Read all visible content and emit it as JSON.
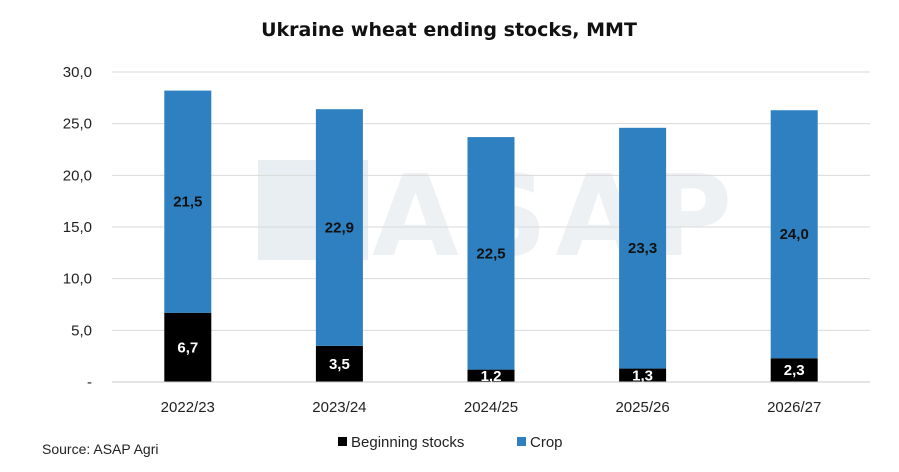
{
  "chart_data": {
    "type": "bar",
    "stacked": true,
    "title": "Ukraine wheat ending stocks, MMT",
    "categories": [
      "2022/23",
      "2023/24",
      "2024/25",
      "2025/26",
      "2026/27"
    ],
    "series": [
      {
        "name": "Beginning stocks",
        "color": "#000000",
        "values": [
          6.7,
          3.5,
          1.2,
          1.3,
          2.3
        ],
        "labels": [
          "6,7",
          "3,5",
          "1,2",
          "1,3",
          "2,3"
        ],
        "label_color": "#ffffff"
      },
      {
        "name": "Crop",
        "color": "#2e80c0",
        "values": [
          21.5,
          22.9,
          22.5,
          23.3,
          24.0
        ],
        "labels": [
          "21,5",
          "22,9",
          "22,5",
          "23,3",
          "24,0"
        ],
        "label_color": "#111111"
      }
    ],
    "ylim": [
      0,
      30
    ],
    "yticks": [
      0,
      5,
      10,
      15,
      20,
      25,
      30
    ],
    "ytick_labels": [
      "-",
      "5,0",
      "10,0",
      "15,0",
      "20,0",
      "25,0",
      "30,0"
    ],
    "grid": true,
    "legend_position": "bottom",
    "watermark": "ASAP"
  },
  "source": "Source: ASAP Agri"
}
